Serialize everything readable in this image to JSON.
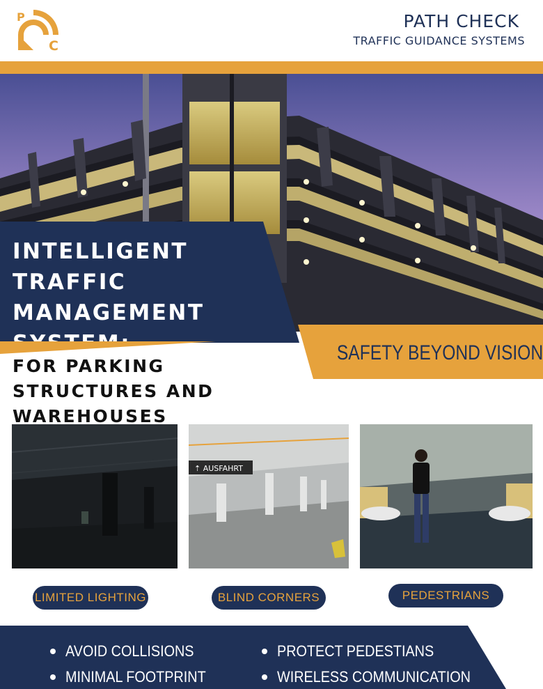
{
  "brand": {
    "name": "PATH CHECK",
    "tagline": "TRAFFIC GUIDANCE SYSTEMS",
    "logo_letters": [
      "P",
      "C"
    ],
    "logo_icon": "signal-arc-logo-icon"
  },
  "colors": {
    "navy": "#1f3157",
    "orange": "#e6a23c",
    "white": "#ffffff"
  },
  "hero": {
    "image": "multi-storey-parking-garage-at-dusk",
    "title": "INTELLIGENT TRAFFIC MANAGEMENT SYSTEM:",
    "subtitle": "FOR PARKING STRUCTURES AND WAREHOUSES",
    "slogan": "SAFETY BEYOND VISION"
  },
  "challenges": [
    {
      "label": "LIMITED LIGHTING",
      "image": "dark-parking-garage"
    },
    {
      "label": "BLIND CORNERS",
      "image": "underground-garage-corner"
    },
    {
      "label": "PEDESTRIANS",
      "image": "pedestrian-walking-in-garage"
    }
  ],
  "features": [
    "AVOID COLLISIONS",
    "PROTECT PEDESTIANS",
    "MINIMAL FOOTPRINT",
    "WIRELESS COMMUNICATION"
  ]
}
